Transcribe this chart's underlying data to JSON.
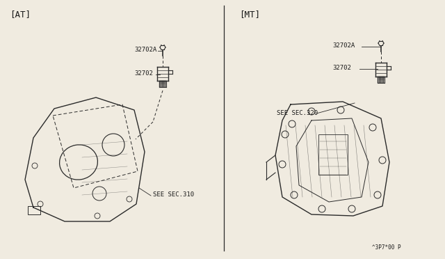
{
  "bg_color": "#f0ebe0",
  "line_color": "#2a2a2a",
  "text_color": "#1a1a1a",
  "title_at": "[AT]",
  "title_mt": "[MT]",
  "label_32702A_at": "32702A",
  "label_32702_at": "32702",
  "label_see_sec310": "SEE SEC.310",
  "label_32702A_mt": "32702A",
  "label_32702_mt": "32702",
  "label_see_sec320": "SEE SEC.320",
  "label_bottom_right": "^3P7*00 P",
  "font_size_title": 9,
  "font_size_label": 6.5,
  "font_size_small": 5.5
}
